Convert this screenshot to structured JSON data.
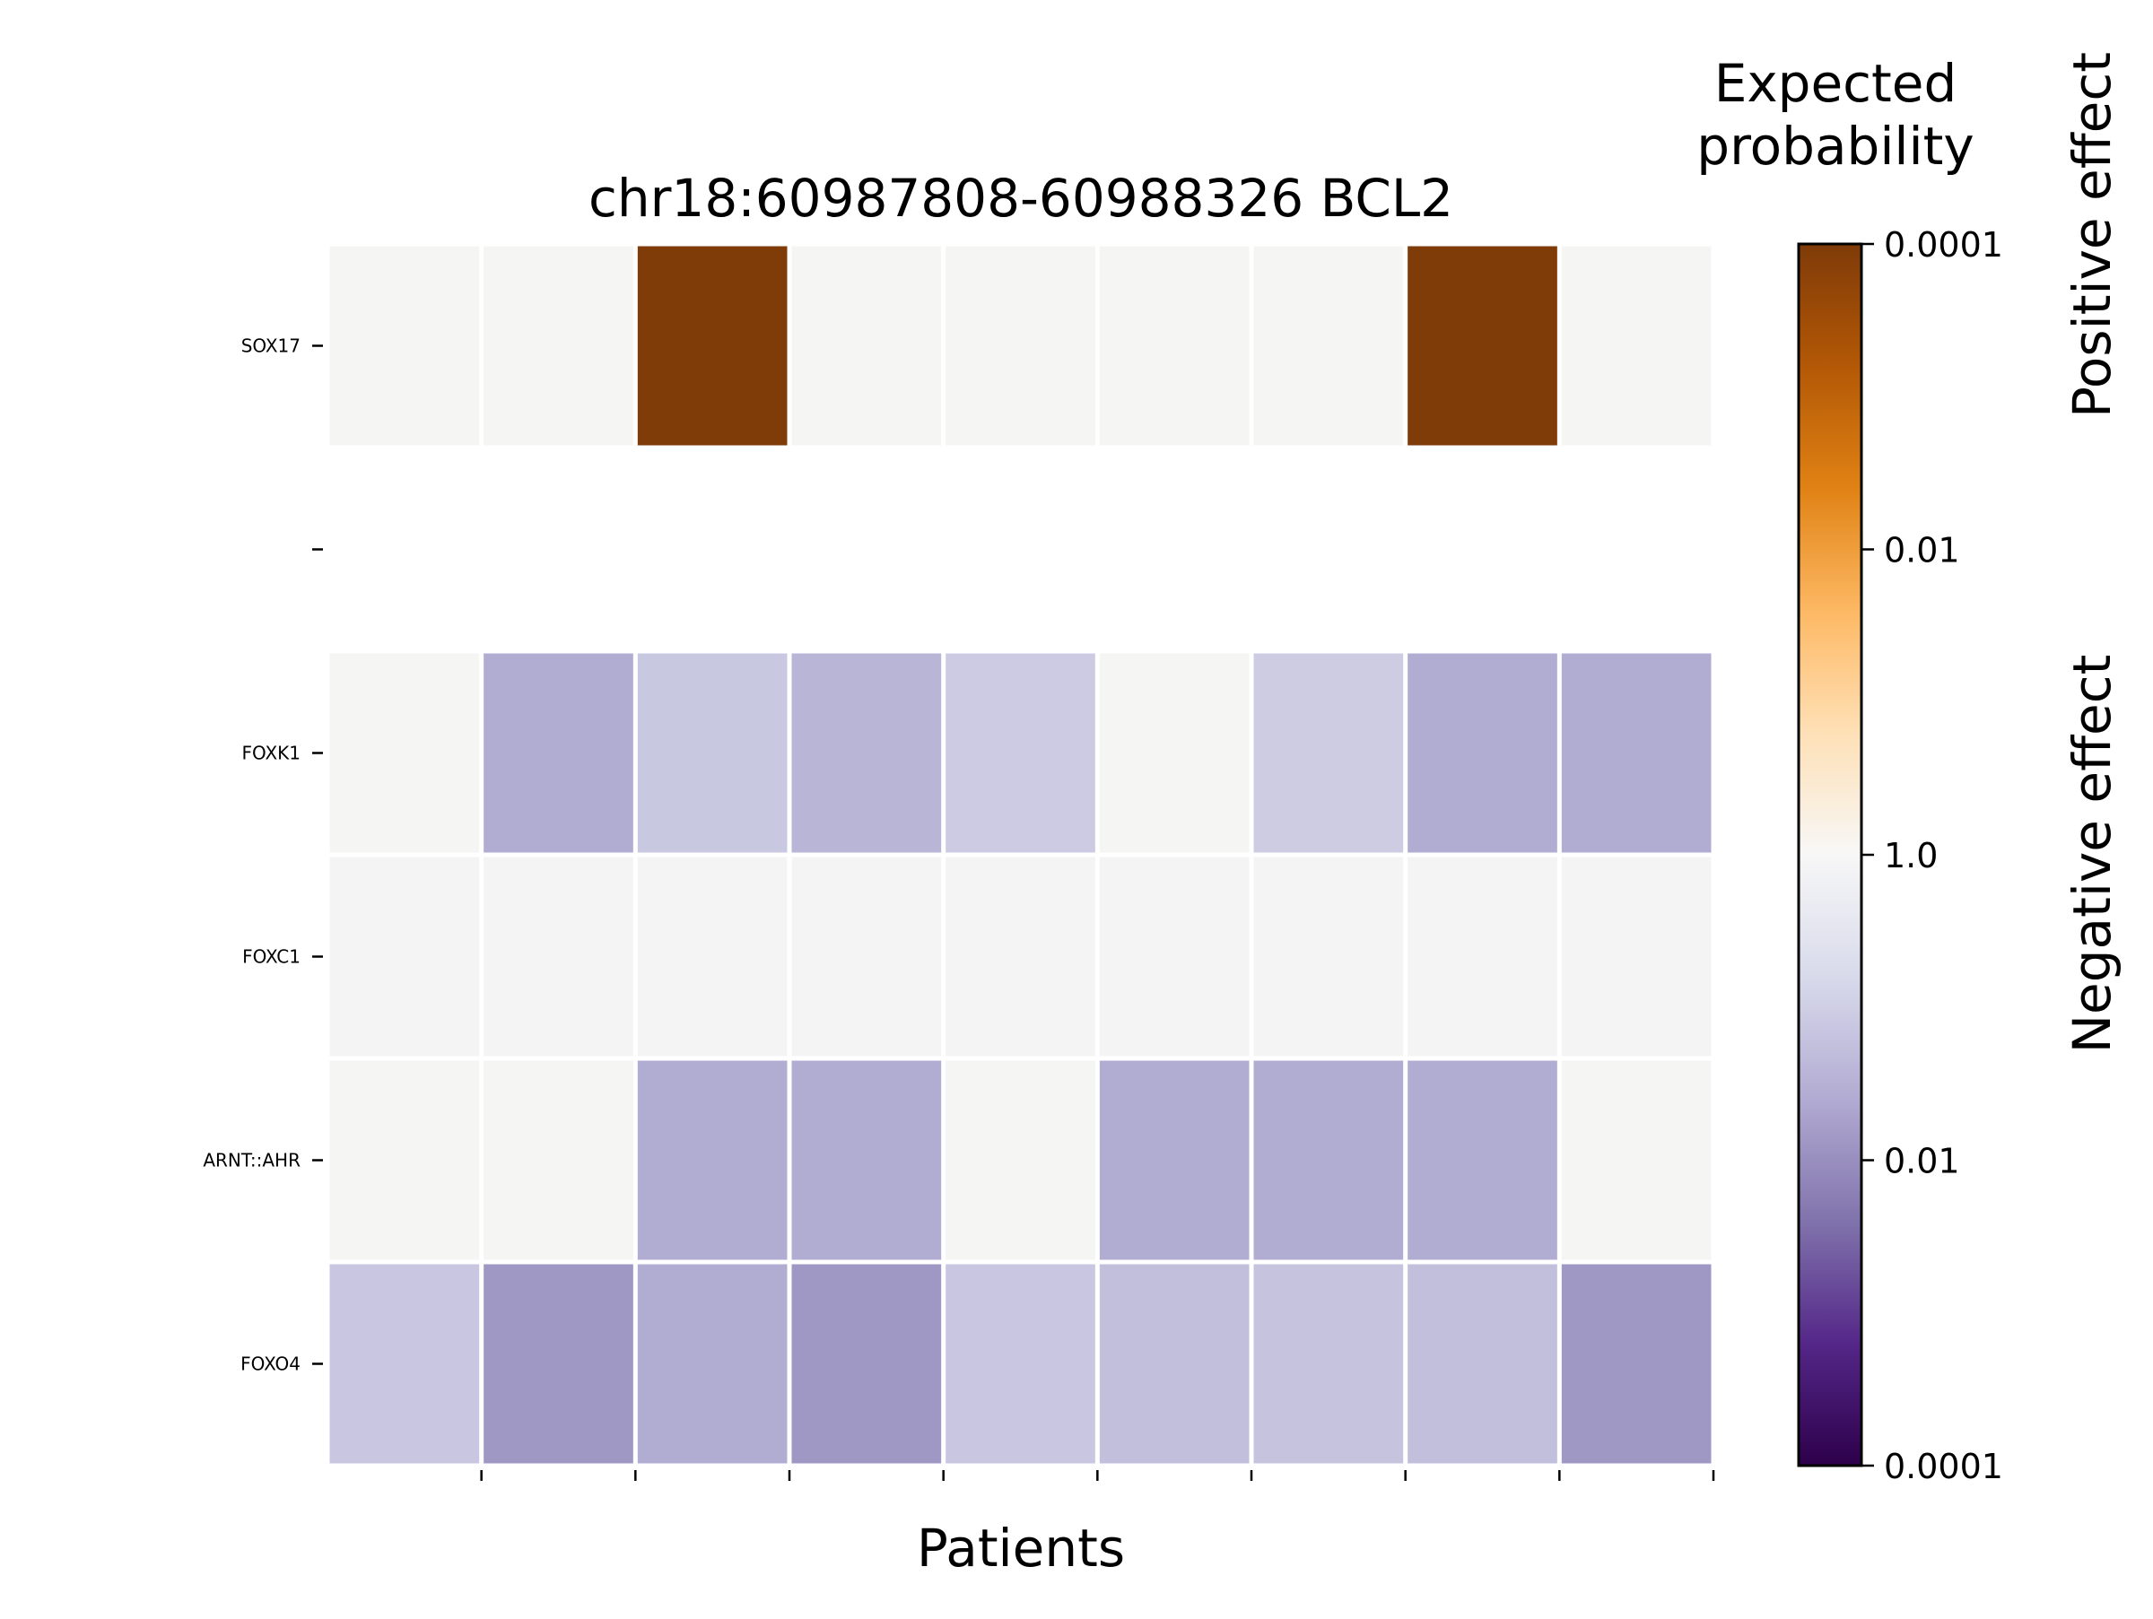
{
  "chart_data": {
    "type": "heatmap",
    "title": "chr18:60987808-60988326 BCL2",
    "xlabel": "Patients",
    "ylabel": "",
    "rows": [
      "SOX17",
      "",
      "FOXK1",
      "FOXC1",
      "ARNT::AHR",
      "FOXO4"
    ],
    "n_columns": 9,
    "cell_colors": [
      [
        "#f5f5f4",
        "#f5f5f4",
        "#7f3b08",
        "#f5f5f4",
        "#f5f5f4",
        "#f5f5f4",
        "#f5f5f4",
        "#7f3b08",
        "#f5f5f4"
      ],
      [
        null,
        null,
        null,
        null,
        null,
        null,
        null,
        null,
        null
      ],
      [
        "#f5f5f4",
        "#b0acd2",
        "#c8c8e0",
        "#b9b5d6",
        "#cdcbe3",
        "#f5f5f4",
        "#cecce3",
        "#b0acd2",
        "#b0acd2"
      ],
      [
        "#f4f4f4",
        "#f4f4f4",
        "#f4f4f4",
        "#f4f4f4",
        "#f4f4f4",
        "#f4f4f4",
        "#f4f4f4",
        "#f4f4f4",
        "#f4f4f4"
      ],
      [
        "#f5f5f4",
        "#f5f5f4",
        "#b0acd2",
        "#b0acd2",
        "#f5f5f4",
        "#b0acd2",
        "#b0acd2",
        "#b0acd2",
        "#f5f5f4"
      ],
      [
        "#c8c6e0",
        "#9f97c4",
        "#b0acd2",
        "#9f97c4",
        "#c8c6e0",
        "#c2bfdc",
        "#c5c3de",
        "#c2bfdc",
        "#9f97c4"
      ]
    ],
    "colorbar": {
      "title": [
        "Expected",
        "probability"
      ],
      "ticks": [
        "0.0001",
        "0.01",
        "1.0",
        "0.01",
        "0.0001"
      ],
      "side_labels": {
        "positive": "Positive effect",
        "negative": "Negative effect"
      },
      "stops": [
        "#7f3b08",
        "#b35806",
        "#e08214",
        "#fdb863",
        "#fee0b6",
        "#f7f7f7",
        "#d8daeb",
        "#b2abd2",
        "#8073ac",
        "#542788",
        "#2d004b"
      ]
    }
  }
}
